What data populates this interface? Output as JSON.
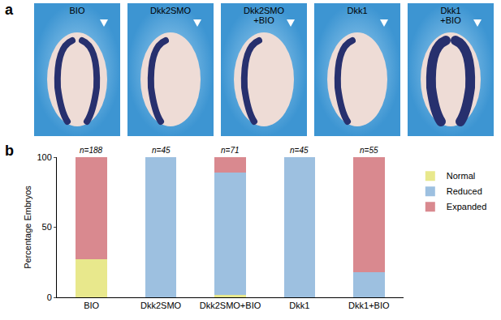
{
  "panel_a": {
    "label": "a",
    "images": [
      [
        "BIO"
      ],
      [
        "Dkk2SMO"
      ],
      [
        "Dkk2SMO",
        "+BIO"
      ],
      [
        "Dkk1"
      ],
      [
        "Dkk1",
        "+BIO"
      ]
    ]
  },
  "chart_data": {
    "type": "bar",
    "panel_label": "b",
    "stacked": true,
    "categories": [
      "BIO",
      "Dkk2SMO",
      "Dkk2SMO+BIO",
      "Dkk1",
      "Dkk1+BIO"
    ],
    "n_labels": [
      "n=188",
      "n=45",
      "n=71",
      "n=45",
      "n=55"
    ],
    "y_label": "Percentage Embryos",
    "ylim": [
      0,
      100
    ],
    "yticks": [
      0,
      50,
      100
    ],
    "grid": false,
    "legend": "right",
    "series": [
      {
        "name": "Normal",
        "color": "#e8e88c",
        "values": [
          27,
          0,
          2,
          0,
          0
        ]
      },
      {
        "name": "Reduced",
        "color": "#9dc0e0",
        "values": [
          0,
          100,
          87,
          100,
          18
        ]
      },
      {
        "name": "Expanded",
        "color": "#d9898f",
        "values": [
          73,
          0,
          11,
          0,
          82
        ]
      }
    ]
  }
}
